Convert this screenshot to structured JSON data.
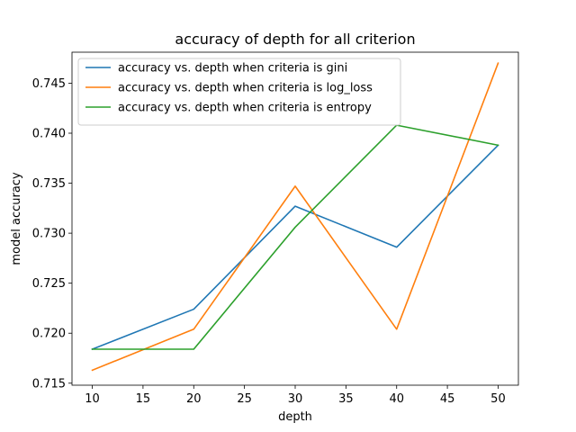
{
  "chart_data": {
    "type": "line",
    "title": "accuracy of depth for all criterion",
    "xlabel": "depth",
    "ylabel": "model accuracy",
    "x": [
      10,
      20,
      30,
      40,
      50
    ],
    "xlim": [
      8,
      52
    ],
    "ylim": [
      0.7148,
      0.7481
    ],
    "xticks": [
      10,
      15,
      20,
      25,
      30,
      35,
      40,
      45,
      50
    ],
    "yticks": [
      0.715,
      0.72,
      0.725,
      0.73,
      0.735,
      0.74,
      0.745
    ],
    "ytick_labels": [
      "0.715",
      "0.720",
      "0.725",
      "0.730",
      "0.735",
      "0.740",
      "0.745"
    ],
    "grid": false,
    "legend_position": "upper-left",
    "series": [
      {
        "name": "accuracy vs. depth when criteria is gini",
        "color": "#1f77b4",
        "values": [
          0.7184,
          0.7224,
          0.7327,
          0.7286,
          0.7388
        ]
      },
      {
        "name": "accuracy vs. depth when criteria is log_loss",
        "color": "#ff7f0e",
        "values": [
          0.7163,
          0.7204,
          0.7347,
          0.7204,
          0.747
        ]
      },
      {
        "name": "accuracy vs. depth when criteria is entropy",
        "color": "#2ca02c",
        "values": [
          0.7184,
          0.7184,
          0.7306,
          0.7408,
          0.7388
        ]
      }
    ]
  }
}
